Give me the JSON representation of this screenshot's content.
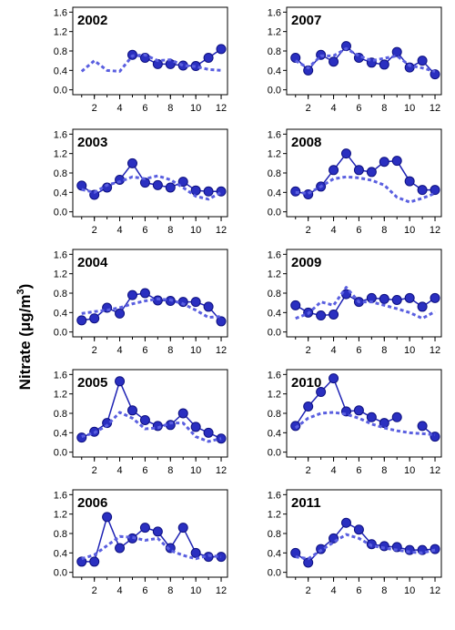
{
  "ylabel_main": "Nitrate (μg/m",
  "ylabel_sup": "3",
  "ylabel_close": ")",
  "colors": {
    "line": "#1e22b4",
    "marker": "#2a2fc0",
    "dotted": "#5a5fe0",
    "marker_edge": "#0d1080"
  },
  "chart_data": [
    {
      "type": "line",
      "title": "2002",
      "x": [
        1,
        2,
        3,
        4,
        5,
        6,
        7,
        8,
        9,
        10,
        11,
        12
      ],
      "xticks": [
        2,
        4,
        6,
        8,
        10,
        12
      ],
      "yticks": [
        0.0,
        0.4,
        0.8,
        1.2,
        1.6
      ],
      "ytick_labels": [
        "0.0",
        "0.4",
        "0.8",
        "1.2",
        "1.6"
      ],
      "ylim": [
        -0.1,
        1.7
      ],
      "xlim": [
        0.3,
        12.5
      ],
      "series": [
        {
          "style": "solid-markers",
          "values": [
            null,
            null,
            null,
            null,
            0.72,
            0.66,
            0.53,
            0.53,
            0.5,
            0.49,
            0.66,
            0.84
          ]
        },
        {
          "style": "dotted",
          "values": [
            0.38,
            0.6,
            0.4,
            0.38,
            0.7,
            0.72,
            0.6,
            0.62,
            0.5,
            0.48,
            0.42,
            0.4
          ]
        }
      ]
    },
    {
      "type": "line",
      "title": "2007",
      "x": [
        1,
        2,
        3,
        4,
        5,
        6,
        7,
        8,
        9,
        10,
        11,
        12
      ],
      "xticks": [
        2,
        4,
        6,
        8,
        10,
        12
      ],
      "yticks": [
        0.0,
        0.4,
        0.8,
        1.2,
        1.6
      ],
      "ytick_labels": [
        "0.0",
        "0.4",
        "0.8",
        "1.2",
        "1.6"
      ],
      "ylim": [
        -0.1,
        1.7
      ],
      "xlim": [
        0.3,
        12.5
      ],
      "series": [
        {
          "style": "solid-markers",
          "values": [
            0.66,
            0.4,
            0.72,
            0.58,
            0.9,
            0.66,
            0.56,
            0.52,
            0.78,
            0.46,
            0.6,
            0.32
          ]
        },
        {
          "style": "dotted",
          "values": [
            0.6,
            0.45,
            0.7,
            0.7,
            0.85,
            0.7,
            0.6,
            0.65,
            0.7,
            0.5,
            0.45,
            0.38
          ]
        }
      ]
    },
    {
      "type": "line",
      "title": "2003",
      "x": [
        1,
        2,
        3,
        4,
        5,
        6,
        7,
        8,
        9,
        10,
        11,
        12
      ],
      "xticks": [
        2,
        4,
        6,
        8,
        10,
        12
      ],
      "yticks": [
        0.0,
        0.4,
        0.8,
        1.2,
        1.6
      ],
      "ytick_labels": [
        "0.0",
        "0.4",
        "0.8",
        "1.2",
        "1.6"
      ],
      "ylim": [
        -0.1,
        1.7
      ],
      "xlim": [
        0.3,
        12.5
      ],
      "series": [
        {
          "style": "solid-markers",
          "values": [
            0.54,
            0.35,
            0.5,
            0.66,
            1.0,
            0.6,
            0.55,
            0.5,
            0.62,
            0.44,
            0.42,
            0.42
          ]
        },
        {
          "style": "dotted",
          "values": [
            0.46,
            0.4,
            0.55,
            0.62,
            0.72,
            0.68,
            0.74,
            0.66,
            0.5,
            0.32,
            0.26,
            0.4
          ]
        }
      ]
    },
    {
      "type": "line",
      "title": "2008",
      "x": [
        1,
        2,
        3,
        4,
        5,
        6,
        7,
        8,
        9,
        10,
        11,
        12
      ],
      "xticks": [
        2,
        4,
        6,
        8,
        10,
        12
      ],
      "yticks": [
        0.0,
        0.4,
        0.8,
        1.2,
        1.6
      ],
      "ytick_labels": [
        "0.0",
        "0.4",
        "0.8",
        "1.2",
        "1.6"
      ],
      "ylim": [
        -0.1,
        1.7
      ],
      "xlim": [
        0.3,
        12.5
      ],
      "series": [
        {
          "style": "solid-markers",
          "values": [
            0.42,
            0.36,
            0.52,
            0.86,
            1.2,
            0.86,
            0.82,
            1.03,
            1.05,
            0.63,
            0.45,
            0.45
          ]
        },
        {
          "style": "dotted",
          "values": [
            0.4,
            0.38,
            0.52,
            0.68,
            0.72,
            0.7,
            0.65,
            0.55,
            0.3,
            0.2,
            0.28,
            0.38
          ]
        }
      ]
    },
    {
      "type": "line",
      "title": "2004",
      "x": [
        1,
        2,
        3,
        4,
        5,
        6,
        7,
        8,
        9,
        10,
        11,
        12
      ],
      "xticks": [
        2,
        4,
        6,
        8,
        10,
        12
      ],
      "yticks": [
        0.0,
        0.4,
        0.8,
        1.2,
        1.6
      ],
      "ytick_labels": [
        "0.0",
        "0.4",
        "0.8",
        "1.2",
        "1.6"
      ],
      "ylim": [
        -0.1,
        1.7
      ],
      "xlim": [
        0.3,
        12.5
      ],
      "series": [
        {
          "style": "solid-markers",
          "values": [
            0.24,
            0.28,
            0.5,
            0.38,
            0.76,
            0.8,
            0.65,
            0.64,
            0.62,
            0.62,
            0.52,
            0.22
          ]
        },
        {
          "style": "dotted",
          "values": [
            0.38,
            0.42,
            0.45,
            0.5,
            0.58,
            0.64,
            0.68,
            0.66,
            0.58,
            0.45,
            0.3,
            0.32
          ]
        }
      ]
    },
    {
      "type": "line",
      "title": "2009",
      "x": [
        1,
        2,
        3,
        4,
        5,
        6,
        7,
        8,
        9,
        10,
        11,
        12
      ],
      "xticks": [
        2,
        4,
        6,
        8,
        10,
        12
      ],
      "yticks": [
        0.0,
        0.4,
        0.8,
        1.2,
        1.6
      ],
      "ytick_labels": [
        "0.0",
        "0.4",
        "0.8",
        "1.2",
        "1.6"
      ],
      "ylim": [
        -0.1,
        1.7
      ],
      "xlim": [
        0.3,
        12.5
      ],
      "series": [
        {
          "style": "solid-markers",
          "values": [
            0.55,
            0.4,
            0.34,
            0.36,
            0.78,
            0.62,
            0.7,
            0.68,
            0.66,
            0.7,
            0.52,
            0.7
          ]
        },
        {
          "style": "dotted",
          "values": [
            0.28,
            0.38,
            0.62,
            0.55,
            0.92,
            0.62,
            0.62,
            0.55,
            0.48,
            0.4,
            0.28,
            0.42
          ]
        }
      ]
    },
    {
      "type": "line",
      "title": "2005",
      "x": [
        1,
        2,
        3,
        4,
        5,
        6,
        7,
        8,
        9,
        10,
        11,
        12
      ],
      "xticks": [
        2,
        4,
        6,
        8,
        10,
        12
      ],
      "yticks": [
        0.0,
        0.4,
        0.8,
        1.2,
        1.6
      ],
      "ytick_labels": [
        "0.0",
        "0.4",
        "0.8",
        "1.2",
        "1.6"
      ],
      "ylim": [
        -0.1,
        1.7
      ],
      "xlim": [
        0.3,
        12.5
      ],
      "series": [
        {
          "style": "solid-markers",
          "values": [
            0.3,
            0.42,
            0.6,
            1.46,
            0.86,
            0.66,
            0.54,
            0.56,
            0.8,
            0.52,
            0.4,
            0.28
          ]
        },
        {
          "style": "dotted",
          "values": [
            0.32,
            0.4,
            0.55,
            0.82,
            0.7,
            0.48,
            0.5,
            0.6,
            0.6,
            0.32,
            0.22,
            0.28
          ]
        }
      ]
    },
    {
      "type": "line",
      "title": "2010",
      "x": [
        1,
        2,
        3,
        4,
        5,
        6,
        7,
        8,
        9,
        10,
        11,
        12
      ],
      "xticks": [
        2,
        4,
        6,
        8,
        10,
        12
      ],
      "yticks": [
        0.0,
        0.4,
        0.8,
        1.2,
        1.6
      ],
      "ytick_labels": [
        "0.0",
        "0.4",
        "0.8",
        "1.2",
        "1.6"
      ],
      "ylim": [
        -0.1,
        1.7
      ],
      "xlim": [
        0.3,
        12.5
      ],
      "series": [
        {
          "style": "solid-markers",
          "values": [
            0.54,
            0.94,
            1.24,
            1.52,
            0.84,
            0.86,
            0.72,
            0.6,
            0.72,
            null,
            0.54,
            0.32
          ]
        },
        {
          "style": "dotted",
          "values": [
            0.5,
            0.7,
            0.8,
            0.82,
            0.78,
            0.7,
            0.58,
            0.5,
            0.44,
            0.4,
            0.38,
            0.36
          ]
        }
      ]
    },
    {
      "type": "line",
      "title": "2006",
      "x": [
        1,
        2,
        3,
        4,
        5,
        6,
        7,
        8,
        9,
        10,
        11,
        12
      ],
      "xticks": [
        2,
        4,
        6,
        8,
        10,
        12
      ],
      "yticks": [
        0.0,
        0.4,
        0.8,
        1.2,
        1.6
      ],
      "ytick_labels": [
        "0.0",
        "0.4",
        "0.8",
        "1.2",
        "1.6"
      ],
      "ylim": [
        -0.1,
        1.7
      ],
      "xlim": [
        0.3,
        12.5
      ],
      "series": [
        {
          "style": "solid-markers",
          "values": [
            0.22,
            0.22,
            1.14,
            0.5,
            0.7,
            0.92,
            0.84,
            0.5,
            0.92,
            0.4,
            0.32,
            0.32
          ]
        },
        {
          "style": "dotted",
          "values": [
            0.28,
            0.36,
            0.55,
            0.74,
            0.72,
            0.66,
            0.7,
            0.45,
            0.35,
            0.28,
            0.35,
            0.32
          ]
        }
      ]
    },
    {
      "type": "line",
      "title": "2011",
      "x": [
        1,
        2,
        3,
        4,
        5,
        6,
        7,
        8,
        9,
        10,
        11,
        12
      ],
      "xticks": [
        2,
        4,
        6,
        8,
        10,
        12
      ],
      "yticks": [
        0.0,
        0.4,
        0.8,
        1.2,
        1.6
      ],
      "ytick_labels": [
        "0.0",
        "0.4",
        "0.8",
        "1.2",
        "1.6"
      ],
      "ylim": [
        -0.1,
        1.7
      ],
      "xlim": [
        0.3,
        12.5
      ],
      "series": [
        {
          "style": "solid-markers",
          "values": [
            0.4,
            0.2,
            0.48,
            0.7,
            1.02,
            0.88,
            0.58,
            0.54,
            0.52,
            0.46,
            0.46,
            0.48
          ]
        },
        {
          "style": "dotted",
          "values": [
            0.32,
            0.28,
            0.45,
            0.62,
            0.78,
            0.7,
            0.55,
            0.5,
            0.46,
            0.42,
            0.4,
            0.46
          ]
        }
      ]
    }
  ]
}
